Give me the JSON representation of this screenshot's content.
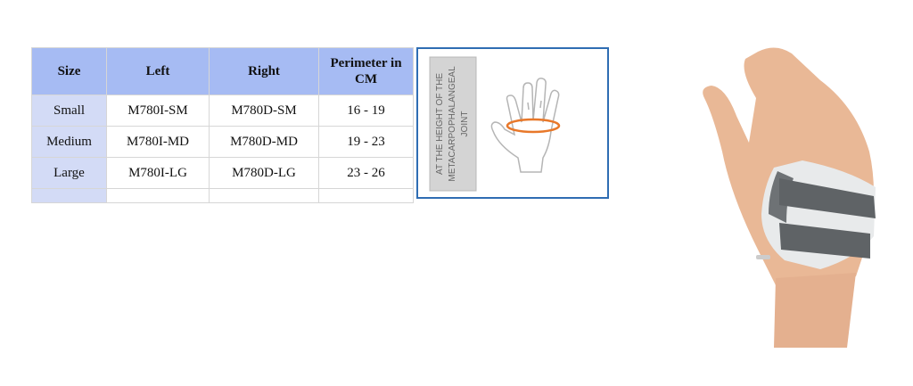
{
  "table": {
    "header": [
      "Size",
      "Left",
      "Right",
      "Perimeter in CM"
    ],
    "rows": [
      [
        "Small",
        "M780I-SM",
        "M780D-SM",
        "16 - 19"
      ],
      [
        "Medium",
        "M780I-MD",
        "M780D-MD",
        "19 - 23"
      ],
      [
        "Large",
        "M780I-LG",
        "M780D-LG",
        "23 - 26"
      ]
    ]
  },
  "measure_label": {
    "lines": [
      "AT THE HEIGHT OF THE",
      "METACARPOPHALANGEAL",
      "JOINT"
    ]
  }
}
